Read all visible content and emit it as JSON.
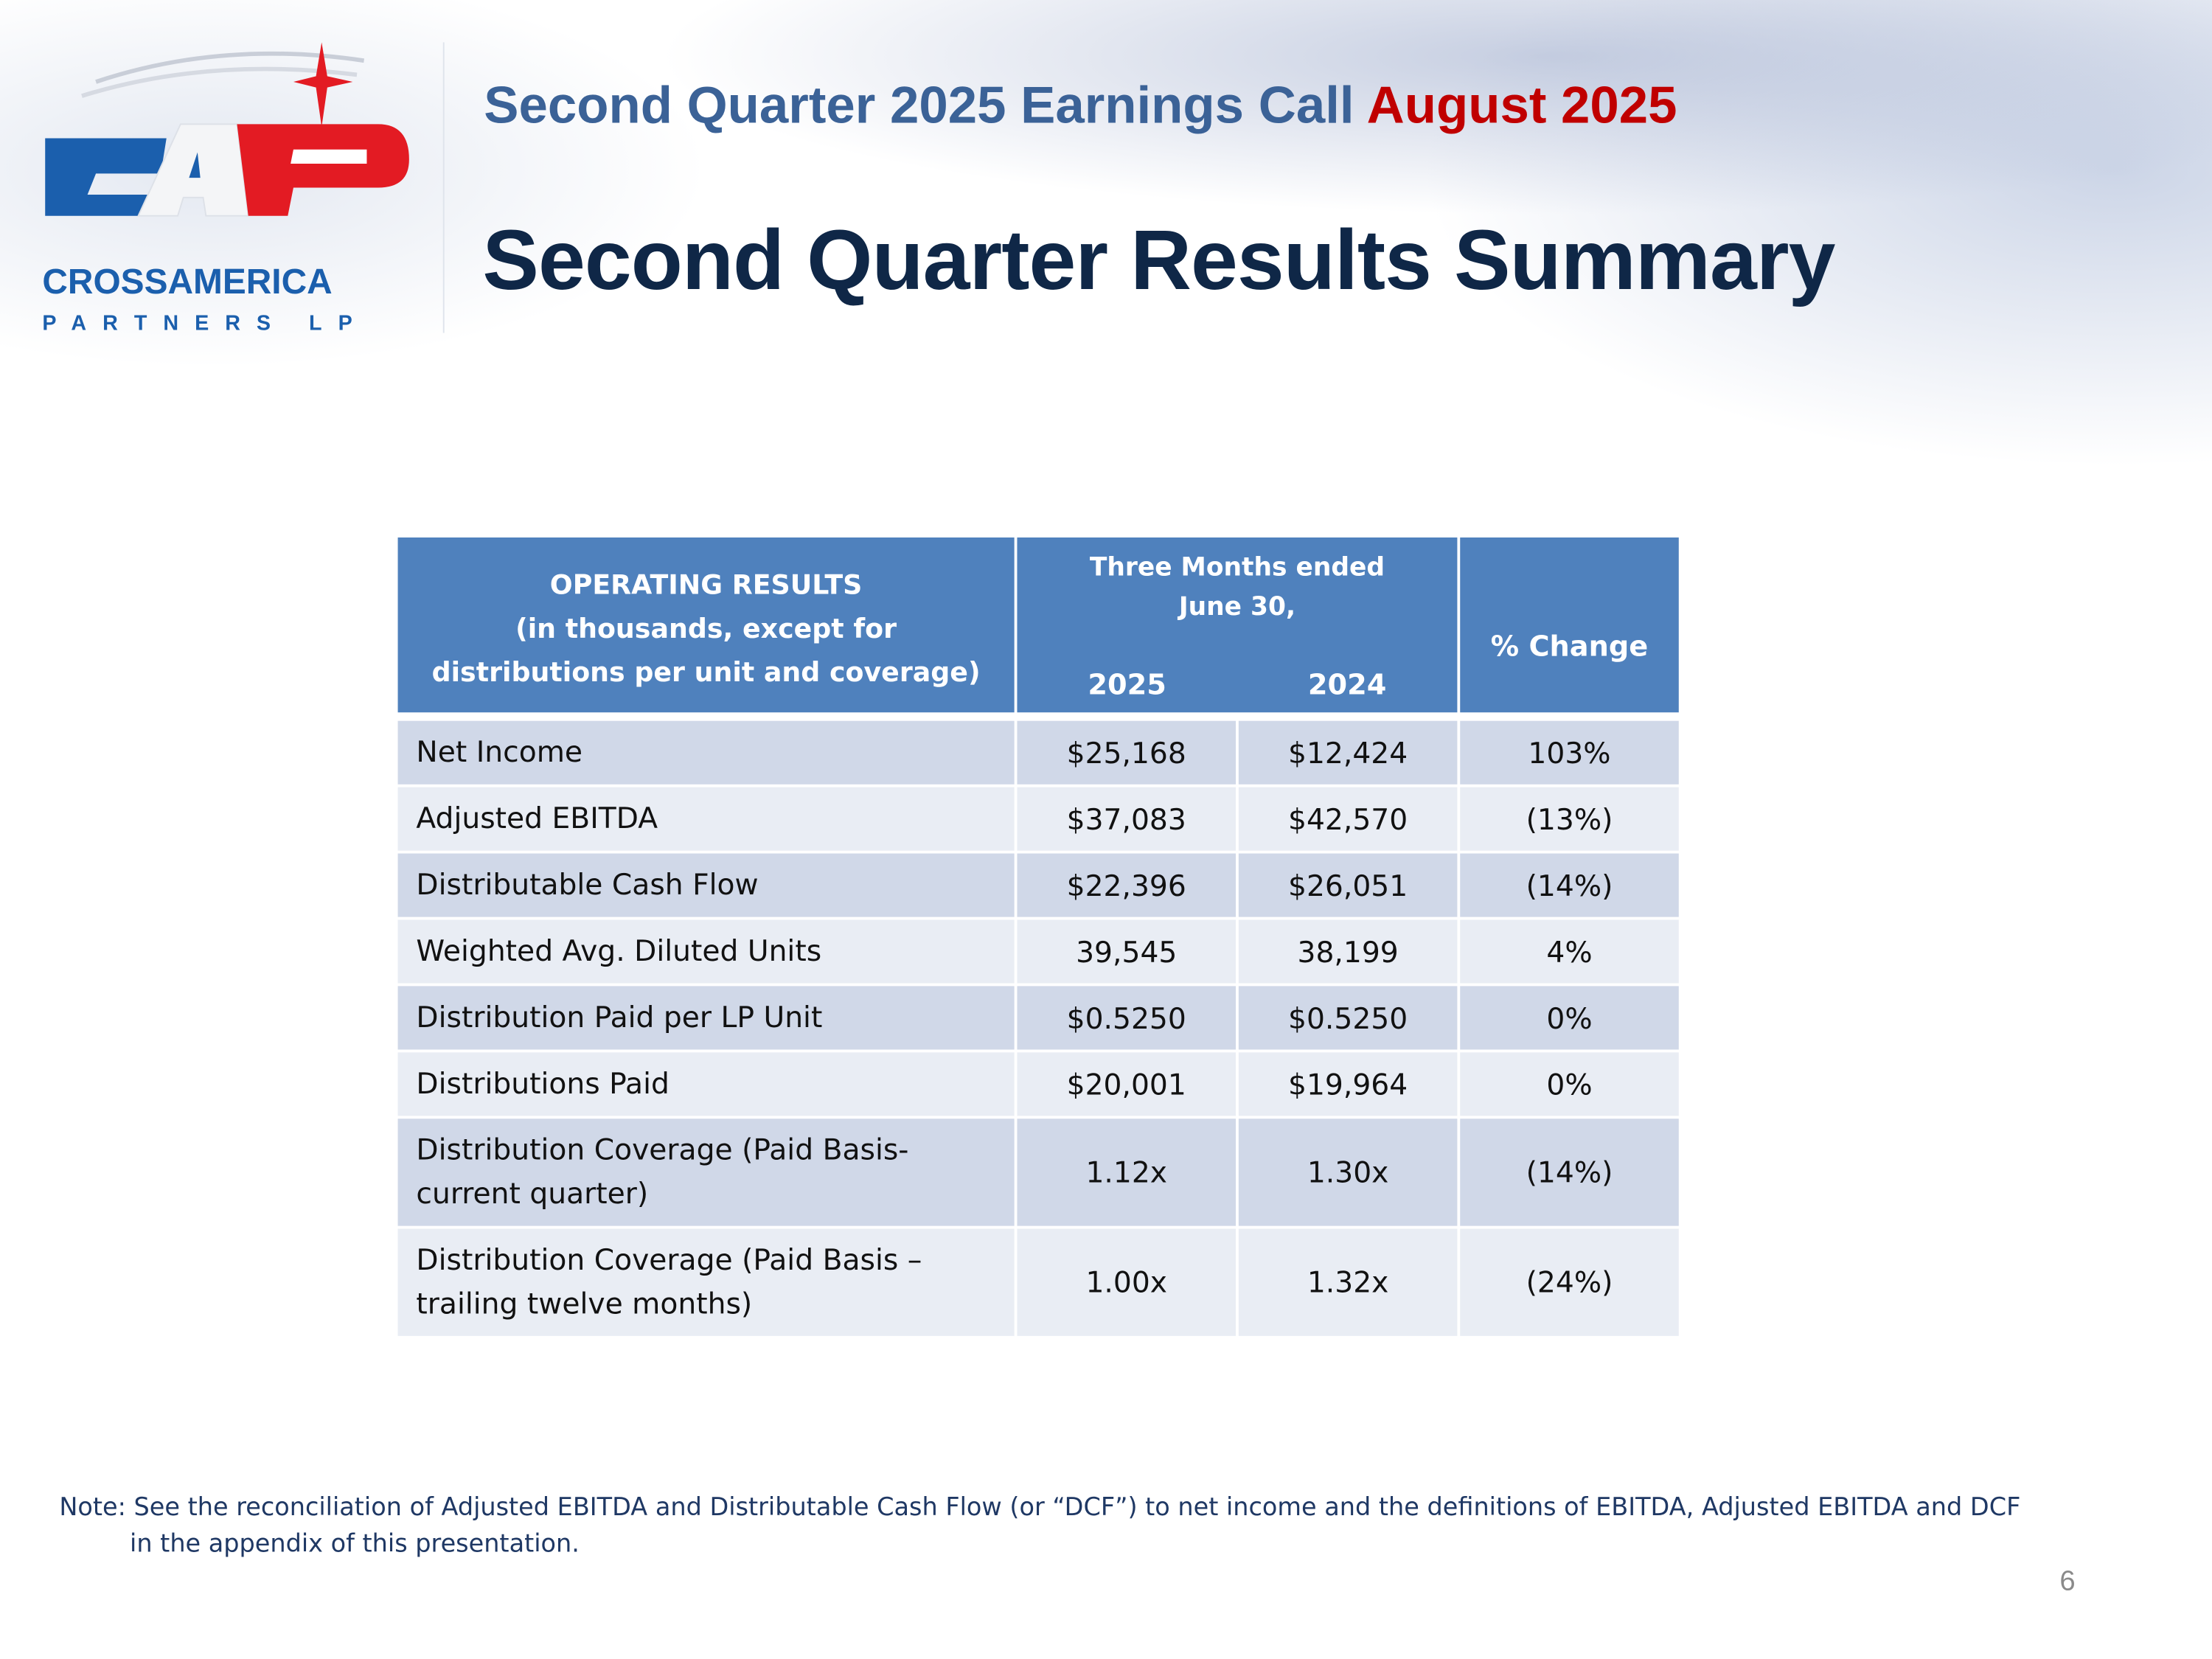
{
  "header": {
    "subtitle": "Second Quarter 2025 Earnings Call ",
    "subtitle_accent": "August 2025",
    "title": "Second Quarter Results Summary"
  },
  "logo": {
    "mark": "CAP",
    "name": "CROSSAMERICA",
    "tagline": "PARTNERS LP",
    "colors": {
      "blue": "#1b5fad",
      "red": "#e31b23"
    }
  },
  "table": {
    "header": {
      "col1": [
        "OPERATING RESULTS",
        "(in thousands, except for",
        "distributions per unit and coverage)"
      ],
      "period": [
        "Three Months ended",
        "June 30,"
      ],
      "year1": "2025",
      "year2": "2024",
      "change": "% Change"
    },
    "rows": [
      {
        "label": "Net Income",
        "v2025": "$25,168",
        "v2024": "$12,424",
        "change": "103%"
      },
      {
        "label": "Adjusted EBITDA",
        "v2025": "$37,083",
        "v2024": "$42,570",
        "change": "(13%)"
      },
      {
        "label": "Distributable Cash Flow",
        "v2025": "$22,396",
        "v2024": "$26,051",
        "change": "(14%)"
      },
      {
        "label": "Weighted Avg. Diluted Units",
        "v2025": "39,545",
        "v2024": "38,199",
        "change": "4%"
      },
      {
        "label": "Distribution Paid per LP Unit",
        "v2025": "$0.5250",
        "v2024": "$0.5250",
        "change": "0%"
      },
      {
        "label": "Distributions Paid",
        "v2025": "$20,001",
        "v2024": "$19,964",
        "change": "0%"
      },
      {
        "label": "Distribution Coverage (Paid Basis-\ncurrent quarter)",
        "v2025": "1.12x",
        "v2024": "1.30x",
        "change": "(14%)"
      },
      {
        "label": "Distribution Coverage (Paid Basis –\ntrailing twelve months)",
        "v2025": "1.00x",
        "v2024": "1.32x",
        "change": "(24%)"
      }
    ],
    "colors": {
      "header": "#4f81bd",
      "row_odd": "#d0d8e8",
      "row_even": "#e9edf4"
    }
  },
  "note": {
    "line1": "Note: See the reconciliation of Adjusted EBITDA and Distributable Cash Flow (or “DCF”) to net income and the definitions of EBITDA, Adjusted EBITDA and DCF",
    "line2": "in the appendix of this presentation."
  },
  "page_number": "6"
}
